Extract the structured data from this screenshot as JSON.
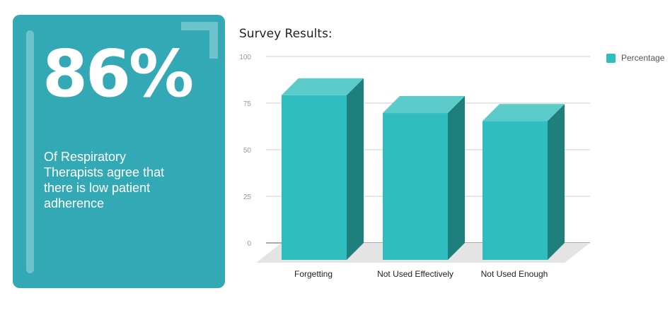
{
  "stat_card": {
    "value": "86%",
    "description": "Of Respiratory Therapists agree that there is low patient adherence",
    "color": "#34a9b6"
  },
  "chart_data": {
    "type": "bar",
    "title": "Survey Results:",
    "categories": [
      "Forgetting",
      "Not Used Effectively",
      "Not Used Enough"
    ],
    "series": [
      {
        "name": "Percentage",
        "values": [
          83,
          74,
          70
        ],
        "color": "#2fbdbf"
      }
    ],
    "ylim": [
      0,
      100
    ],
    "yticks": [
      0,
      25,
      50,
      75,
      100
    ],
    "xlabel": "",
    "ylabel": "",
    "grid": true,
    "style": "3d",
    "legend_position": "top-right"
  }
}
